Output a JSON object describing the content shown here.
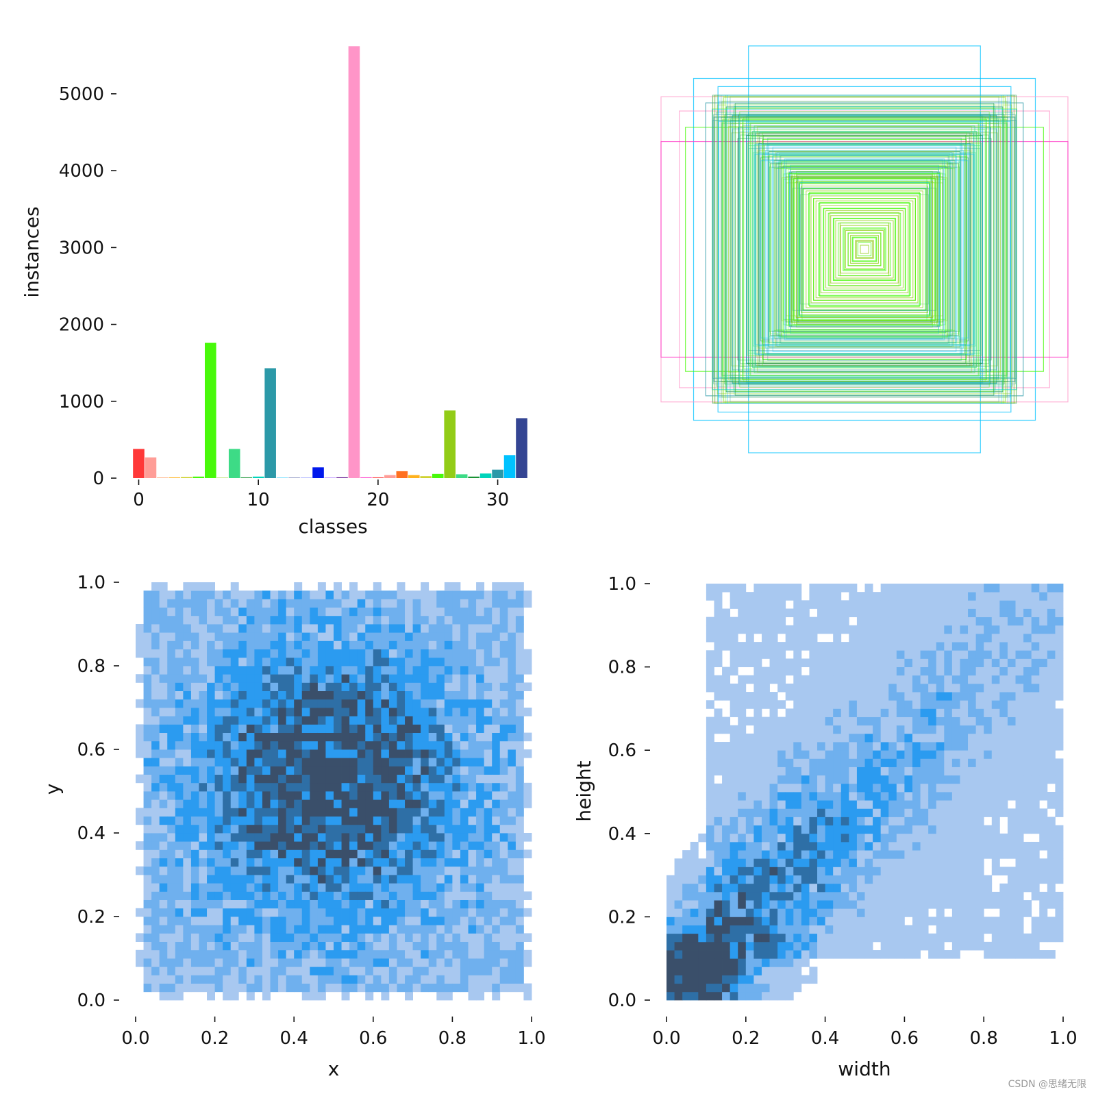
{
  "figure": {
    "watermark": "CSDN @思绪无限"
  },
  "chart_data": [
    {
      "type": "bar",
      "name": "classes-histogram",
      "xlabel": "classes",
      "ylabel": "instances",
      "xlim": [
        -0.6,
        32.6
      ],
      "ylim": [
        0,
        5650
      ],
      "xticks": [
        0,
        10,
        20,
        30
      ],
      "yticks": [
        0,
        1000,
        2000,
        3000,
        4000,
        5000
      ],
      "values": [
        380,
        270,
        5,
        10,
        15,
        20,
        1760,
        5,
        380,
        10,
        20,
        1430,
        5,
        5,
        5,
        140,
        5,
        10,
        5620,
        10,
        10,
        40,
        90,
        40,
        25,
        55,
        880,
        50,
        20,
        60,
        110,
        300,
        780
      ],
      "colors": [
        "#ff3838",
        "#ff9d97",
        "#ff701f",
        "#ffb21d",
        "#cfd231",
        "#48f90a",
        "#48f90a",
        "#92cc17",
        "#3ddb86",
        "#1a9334",
        "#00d4bb",
        "#2c99a8",
        "#00c2ff",
        "#344593",
        "#6473ff",
        "#0018ec",
        "#8438ff",
        "#520085",
        "#ff95c8",
        "#ff37c7",
        "#ff3838",
        "#ff9d97",
        "#ff701f",
        "#ffb21d",
        "#cfd231",
        "#48f90a",
        "#92cc17",
        "#3ddb86",
        "#1a9334",
        "#00d4bb",
        "#2c99a8",
        "#00c2ff",
        "#344593"
      ]
    },
    {
      "type": "boxes",
      "name": "label-boxes-overlay",
      "description_units": "normalized width/height of centered boxes",
      "boxes": [
        {
          "w": 0.57,
          "h": 1.0,
          "color": "#00c2ff"
        },
        {
          "w": 0.84,
          "h": 0.84,
          "color": "#00c2ff"
        },
        {
          "w": 1.0,
          "h": 0.75,
          "color": "#ff95c8"
        },
        {
          "w": 0.91,
          "h": 0.68,
          "color": "#ff95c8"
        },
        {
          "w": 1.0,
          "h": 0.53,
          "color": "#ff37c7"
        },
        {
          "w": 0.88,
          "h": 0.6,
          "color": "#48f90a"
        },
        {
          "w": 0.78,
          "h": 0.72,
          "color": "#2c99a8"
        },
        {
          "w": 0.72,
          "h": 0.8,
          "color": "#00c2ff"
        },
        {
          "w": 0.74,
          "h": 0.65,
          "color": "#2c99a8"
        },
        {
          "w": 0.68,
          "h": 0.7,
          "color": "#1a9334"
        },
        {
          "w": 0.7,
          "h": 0.62,
          "color": "#3ddb86"
        },
        {
          "w": 0.65,
          "h": 0.66,
          "color": "#00c2ff"
        },
        {
          "w": 0.62,
          "h": 0.6,
          "color": "#2c99a8"
        },
        {
          "w": 0.6,
          "h": 0.64,
          "color": "#48f90a"
        },
        {
          "w": 0.58,
          "h": 0.56,
          "color": "#1a9334"
        },
        {
          "w": 0.55,
          "h": 0.58,
          "color": "#3ddb86"
        },
        {
          "w": 0.52,
          "h": 0.52,
          "color": "#2c99a8"
        },
        {
          "w": 0.5,
          "h": 0.54,
          "color": "#48f90a"
        },
        {
          "w": 0.47,
          "h": 0.48,
          "color": "#1a9334"
        },
        {
          "w": 0.45,
          "h": 0.46,
          "color": "#00c2ff"
        },
        {
          "w": 0.42,
          "h": 0.43,
          "color": "#3ddb86"
        },
        {
          "w": 0.4,
          "h": 0.41,
          "color": "#48f90a"
        },
        {
          "w": 0.37,
          "h": 0.38,
          "color": "#2c99a8"
        },
        {
          "w": 0.35,
          "h": 0.35,
          "color": "#92cc17"
        },
        {
          "w": 0.32,
          "h": 0.33,
          "color": "#48f90a"
        },
        {
          "w": 0.3,
          "h": 0.3,
          "color": "#3ddb86"
        },
        {
          "w": 0.27,
          "h": 0.28,
          "color": "#48f90a"
        },
        {
          "w": 0.25,
          "h": 0.25,
          "color": "#92cc17"
        },
        {
          "w": 0.22,
          "h": 0.23,
          "color": "#48f90a"
        },
        {
          "w": 0.2,
          "h": 0.2,
          "color": "#48f90a"
        },
        {
          "w": 0.17,
          "h": 0.18,
          "color": "#92cc17"
        },
        {
          "w": 0.15,
          "h": 0.15,
          "color": "#48f90a"
        },
        {
          "w": 0.12,
          "h": 0.13,
          "color": "#92cc17"
        },
        {
          "w": 0.1,
          "h": 0.1,
          "color": "#48f90a"
        },
        {
          "w": 0.08,
          "h": 0.08,
          "color": "#92cc17"
        },
        {
          "w": 0.06,
          "h": 0.06,
          "color": "#48f90a"
        },
        {
          "w": 0.04,
          "h": 0.04,
          "color": "#92cc17"
        }
      ]
    },
    {
      "type": "heatmap",
      "name": "xy-histogram",
      "xlabel": "x",
      "ylabel": "y",
      "xlim": [
        0.0,
        1.0
      ],
      "ylim": [
        0.0,
        1.0
      ],
      "xticks": [
        0.0,
        0.2,
        0.4,
        0.6,
        0.8,
        1.0
      ],
      "yticks": [
        0.0,
        0.2,
        0.4,
        0.6,
        0.8,
        1.0
      ],
      "tick_labels": [
        "0.0",
        "0.2",
        "0.4",
        "0.6",
        "0.8",
        "1.0"
      ],
      "bins": 50,
      "density_center": [
        0.49,
        0.52
      ],
      "density_spread": [
        0.3,
        0.3
      ],
      "colors": [
        "#a8c8f0",
        "#6fb0ee",
        "#2b9bf0",
        "#2e6fa6",
        "#3a4f6a"
      ]
    },
    {
      "type": "heatmap",
      "name": "width-height-histogram",
      "xlabel": "width",
      "ylabel": "height",
      "xlim": [
        0.0,
        1.0
      ],
      "ylim": [
        0.0,
        1.0
      ],
      "xticks": [
        0.0,
        0.2,
        0.4,
        0.6,
        0.8,
        1.0
      ],
      "yticks": [
        0.0,
        0.2,
        0.4,
        0.6,
        0.8,
        1.0
      ],
      "tick_labels": [
        "0.0",
        "0.2",
        "0.4",
        "0.6",
        "0.8",
        "1.0"
      ],
      "bins": 50,
      "density_peak": [
        0.08,
        0.08
      ],
      "colors": [
        "#a8c8f0",
        "#6fb0ee",
        "#2b9bf0",
        "#2e6fa6",
        "#3a4f6a"
      ]
    }
  ]
}
